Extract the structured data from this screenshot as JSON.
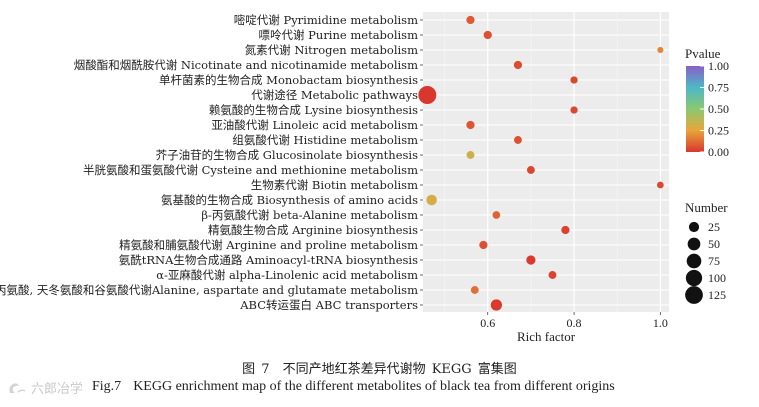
{
  "chart_data": {
    "type": "scatter",
    "subtype": "bubble",
    "xlabel": "Rich factor",
    "xlim": [
      0.45,
      1.02
    ],
    "xticks": [
      0.6,
      0.8,
      1.0
    ],
    "xtick_labels": [
      "0.6",
      "0.8",
      "1.0"
    ],
    "grid": true,
    "categories": [
      "嘧啶代谢 Pyrimidine metabolism",
      "嘌呤代谢 Purine metabolism",
      "氮素代谢 Nitrogen metabolism",
      "烟酸酯和烟酰胺代谢 Nicotinate and nicotinamide metabolism",
      "单杆菌素的生物合成 Monobactam biosynthesis",
      "代谢途径 Metabolic pathways",
      "赖氨酸的生物合成 Lysine biosynthesis",
      "亚油酸代谢 Linoleic acid metabolism",
      "组氨酸代谢 Histidine metabolism",
      "芥子油苷的生物合成 Glucosinolate biosynthesis",
      "半胱氨酸和蛋氨酸代谢 Cysteine and methionine metabolism",
      "生物素代谢 Biotin metabolism",
      "氨基酸的生物合成 Biosynthesis of amino acids",
      "β-丙氨酸代谢 beta-Alanine metabolism",
      "精氨酸生物合成 Arginine biosynthesis",
      "精氨酸和脯氨酸代谢 Arginine and proline metabolism",
      "氨酰tRNA生物合成通路 Aminoacyl-tRNA biosynthesis",
      "α-亚麻酸代谢 alpha-Linolenic acid metabolism",
      "丙氨酸, 天冬氨酸和谷氨酸代谢Alanine, aspartate and glutamate metabolism",
      "ABC转运蛋白 ABC transporters"
    ],
    "points": [
      {
        "rich_factor": 0.56,
        "number": 12,
        "pvalue": 0.08
      },
      {
        "rich_factor": 0.6,
        "number": 12,
        "pvalue": 0.06
      },
      {
        "rich_factor": 1.0,
        "number": 3,
        "pvalue": 0.18
      },
      {
        "rich_factor": 0.67,
        "number": 12,
        "pvalue": 0.05
      },
      {
        "rich_factor": 0.8,
        "number": 7,
        "pvalue": 0.04
      },
      {
        "rich_factor": 0.46,
        "number": 130,
        "pvalue": 0.0
      },
      {
        "rich_factor": 0.8,
        "number": 7,
        "pvalue": 0.04
      },
      {
        "rich_factor": 0.56,
        "number": 12,
        "pvalue": 0.07
      },
      {
        "rich_factor": 0.67,
        "number": 10,
        "pvalue": 0.06
      },
      {
        "rich_factor": 0.56,
        "number": 10,
        "pvalue": 0.32
      },
      {
        "rich_factor": 0.7,
        "number": 10,
        "pvalue": 0.04
      },
      {
        "rich_factor": 1.0,
        "number": 5,
        "pvalue": 0.04
      },
      {
        "rich_factor": 0.47,
        "number": 28,
        "pvalue": 0.3
      },
      {
        "rich_factor": 0.62,
        "number": 9,
        "pvalue": 0.1
      },
      {
        "rich_factor": 0.78,
        "number": 12,
        "pvalue": 0.02
      },
      {
        "rich_factor": 0.59,
        "number": 12,
        "pvalue": 0.06
      },
      {
        "rich_factor": 0.7,
        "number": 18,
        "pvalue": 0.01
      },
      {
        "rich_factor": 0.75,
        "number": 10,
        "pvalue": 0.03
      },
      {
        "rich_factor": 0.57,
        "number": 10,
        "pvalue": 0.13
      },
      {
        "rich_factor": 0.62,
        "number": 35,
        "pvalue": 0.01
      }
    ],
    "color_legend": {
      "title": "Pvalue",
      "ticks": [
        1.0,
        0.75,
        0.5,
        0.25,
        0.0
      ],
      "tick_labels": [
        "1.00",
        "0.75",
        "0.50",
        "0.25",
        "0.00"
      ],
      "range": [
        0,
        1
      ],
      "colors": [
        "#d9362e",
        "#e8a53a",
        "#8cc870",
        "#4cb8c6",
        "#8a5ec8"
      ]
    },
    "size_legend": {
      "title": "Number",
      "values": [
        25,
        50,
        75,
        100,
        125
      ],
      "labels": [
        "25",
        "50",
        "75",
        "100",
        "125"
      ]
    }
  },
  "caption": {
    "cn": "图 7　不同产地红茶差异代谢物 KEGG 富集图",
    "en_fig": "Fig.7",
    "en_text": "KEGG enrichment map of the different metabolites of black tea from different origins"
  },
  "watermark": "六郎冶学"
}
